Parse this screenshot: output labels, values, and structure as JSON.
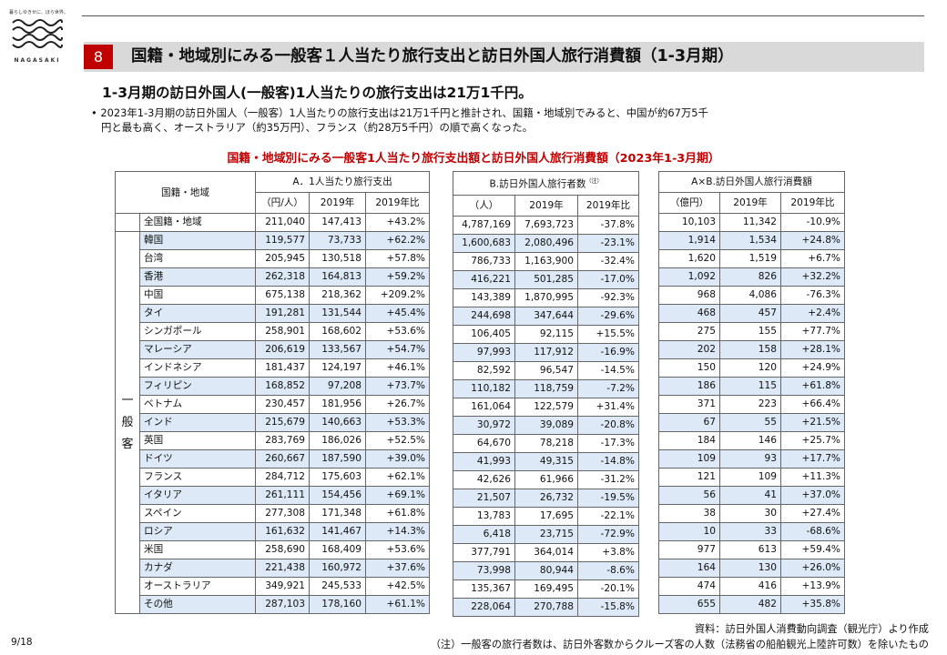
{
  "logo": {
    "tagline": "暮らしゆきせに、ほら世界。",
    "wordmark": "NAGASAKI"
  },
  "header": {
    "section_number": "8",
    "title": "国籍・地域別にみる一般客１人当たり旅行支出と訪日外国人旅行消費額（1-3月期）"
  },
  "headline": "1-3月期の訪日外国人(一般客)1人当たりの旅行支出は21万1千円。",
  "bullet": {
    "line1": "• 2023年1-3月期の訪日外国人（一般客）1人当たりの旅行支出は21万1千円と推計され、国籍・地域別でみると、中国が約67万5千",
    "line2": "円と最も高く、オーストラリア（約35万円）、フランス（約28万5千円）の順で高くなった。"
  },
  "table_title": "国籍・地域別にみる一般客1人当たり旅行支出額と訪日外国人旅行消費額（2023年1-3月期）",
  "table": {
    "country_header": "国籍・地域",
    "group_label": "一般客",
    "sections": {
      "a": {
        "title": "A．1人当たり旅行支出",
        "unit": "（円/人）",
        "col_2019": "2019年",
        "col_ratio": "2019年比"
      },
      "b": {
        "title": "B.訪日外国人旅行者数",
        "note_mark": "（注）",
        "unit": "（人）",
        "col_2019": "2019年",
        "col_ratio": "2019年比"
      },
      "c": {
        "title": "A×B.訪日外国人旅行消費額",
        "unit": "（億円）",
        "col_2019": "2019年",
        "col_ratio": "2019年比"
      }
    },
    "rows": [
      {
        "name": "全国籍・地域",
        "a": "211,040",
        "a2019": "147,413",
        "ar": "+43.2%",
        "b": "4,787,169",
        "b2019": "7,693,723",
        "br": "-37.8%",
        "c": "10,103",
        "c2019": "11,342",
        "cr": "-10.9%"
      },
      {
        "name": "韓国",
        "a": "119,577",
        "a2019": "73,733",
        "ar": "+62.2%",
        "b": "1,600,683",
        "b2019": "2,080,496",
        "br": "-23.1%",
        "c": "1,914",
        "c2019": "1,534",
        "cr": "+24.8%"
      },
      {
        "name": "台湾",
        "a": "205,945",
        "a2019": "130,518",
        "ar": "+57.8%",
        "b": "786,733",
        "b2019": "1,163,900",
        "br": "-32.4%",
        "c": "1,620",
        "c2019": "1,519",
        "cr": "+6.7%"
      },
      {
        "name": "香港",
        "a": "262,318",
        "a2019": "164,813",
        "ar": "+59.2%",
        "b": "416,221",
        "b2019": "501,285",
        "br": "-17.0%",
        "c": "1,092",
        "c2019": "826",
        "cr": "+32.2%"
      },
      {
        "name": "中国",
        "a": "675,138",
        "a2019": "218,362",
        "ar": "+209.2%",
        "b": "143,389",
        "b2019": "1,870,995",
        "br": "-92.3%",
        "c": "968",
        "c2019": "4,086",
        "cr": "-76.3%"
      },
      {
        "name": "タイ",
        "a": "191,281",
        "a2019": "131,544",
        "ar": "+45.4%",
        "b": "244,698",
        "b2019": "347,644",
        "br": "-29.6%",
        "c": "468",
        "c2019": "457",
        "cr": "+2.4%"
      },
      {
        "name": "シンガポール",
        "a": "258,901",
        "a2019": "168,602",
        "ar": "+53.6%",
        "b": "106,405",
        "b2019": "92,115",
        "br": "+15.5%",
        "c": "275",
        "c2019": "155",
        "cr": "+77.7%"
      },
      {
        "name": "マレーシア",
        "a": "206,619",
        "a2019": "133,567",
        "ar": "+54.7%",
        "b": "97,993",
        "b2019": "117,912",
        "br": "-16.9%",
        "c": "202",
        "c2019": "158",
        "cr": "+28.1%"
      },
      {
        "name": "インドネシア",
        "a": "181,437",
        "a2019": "124,197",
        "ar": "+46.1%",
        "b": "82,592",
        "b2019": "96,547",
        "br": "-14.5%",
        "c": "150",
        "c2019": "120",
        "cr": "+24.9%"
      },
      {
        "name": "フィリピン",
        "a": "168,852",
        "a2019": "97,208",
        "ar": "+73.7%",
        "b": "110,182",
        "b2019": "118,759",
        "br": "-7.2%",
        "c": "186",
        "c2019": "115",
        "cr": "+61.8%"
      },
      {
        "name": "ベトナム",
        "a": "230,457",
        "a2019": "181,956",
        "ar": "+26.7%",
        "b": "161,064",
        "b2019": "122,579",
        "br": "+31.4%",
        "c": "371",
        "c2019": "223",
        "cr": "+66.4%"
      },
      {
        "name": "インド",
        "a": "215,679",
        "a2019": "140,663",
        "ar": "+53.3%",
        "b": "30,972",
        "b2019": "39,089",
        "br": "-20.8%",
        "c": "67",
        "c2019": "55",
        "cr": "+21.5%"
      },
      {
        "name": "英国",
        "a": "283,769",
        "a2019": "186,026",
        "ar": "+52.5%",
        "b": "64,670",
        "b2019": "78,218",
        "br": "-17.3%",
        "c": "184",
        "c2019": "146",
        "cr": "+25.7%"
      },
      {
        "name": "ドイツ",
        "a": "260,667",
        "a2019": "187,590",
        "ar": "+39.0%",
        "b": "41,993",
        "b2019": "49,315",
        "br": "-14.8%",
        "c": "109",
        "c2019": "93",
        "cr": "+17.7%"
      },
      {
        "name": "フランス",
        "a": "284,712",
        "a2019": "175,603",
        "ar": "+62.1%",
        "b": "42,626",
        "b2019": "61,966",
        "br": "-31.2%",
        "c": "121",
        "c2019": "109",
        "cr": "+11.3%"
      },
      {
        "name": "イタリア",
        "a": "261,111",
        "a2019": "154,456",
        "ar": "+69.1%",
        "b": "21,507",
        "b2019": "26,732",
        "br": "-19.5%",
        "c": "56",
        "c2019": "41",
        "cr": "+37.0%"
      },
      {
        "name": "スペイン",
        "a": "277,308",
        "a2019": "171,348",
        "ar": "+61.8%",
        "b": "13,783",
        "b2019": "17,695",
        "br": "-22.1%",
        "c": "38",
        "c2019": "30",
        "cr": "+27.4%"
      },
      {
        "name": "ロシア",
        "a": "161,632",
        "a2019": "141,467",
        "ar": "+14.3%",
        "b": "6,418",
        "b2019": "23,715",
        "br": "-72.9%",
        "c": "10",
        "c2019": "33",
        "cr": "-68.6%"
      },
      {
        "name": "米国",
        "a": "258,690",
        "a2019": "168,409",
        "ar": "+53.6%",
        "b": "377,791",
        "b2019": "364,014",
        "br": "+3.8%",
        "c": "977",
        "c2019": "613",
        "cr": "+59.4%"
      },
      {
        "name": "カナダ",
        "a": "221,438",
        "a2019": "160,972",
        "ar": "+37.6%",
        "b": "73,998",
        "b2019": "80,944",
        "br": "-8.6%",
        "c": "164",
        "c2019": "130",
        "cr": "+26.0%"
      },
      {
        "name": "オーストラリア",
        "a": "349,921",
        "a2019": "245,533",
        "ar": "+42.5%",
        "b": "135,367",
        "b2019": "169,495",
        "br": "-20.1%",
        "c": "474",
        "c2019": "416",
        "cr": "+13.9%"
      },
      {
        "name": "その他",
        "a": "287,103",
        "a2019": "178,160",
        "ar": "+61.1%",
        "b": "228,064",
        "b2019": "270,788",
        "br": "-15.8%",
        "c": "655",
        "c2019": "482",
        "cr": "+35.8%"
      }
    ]
  },
  "footer": {
    "source": "資料：訪日外国人消費動向調査（観光庁）より作成",
    "note": "（注）一般客の旅行者数は、訪日外客数からクルーズ客の人数（法務省の船舶観光上陸許可数）を除いたもの",
    "page": "9/18"
  }
}
